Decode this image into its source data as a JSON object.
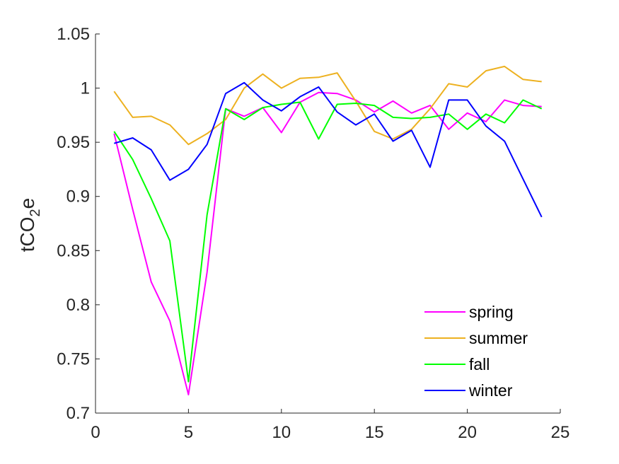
{
  "chart_data": {
    "type": "line",
    "title": "",
    "xlabel": "",
    "ylabel": "tCO",
    "ylabel_sub": "2",
    "ylabel_suffix": "e",
    "xlim": [
      0,
      25
    ],
    "ylim": [
      0.7,
      1.05
    ],
    "xticks": [
      0,
      5,
      10,
      15,
      20,
      25
    ],
    "xtick_labels": [
      "0",
      "5",
      "10",
      "15",
      "20",
      "25"
    ],
    "yticks": [
      0.7,
      0.75,
      0.8,
      0.85,
      0.9,
      0.95,
      1.0,
      1.05
    ],
    "ytick_labels": [
      "0.7",
      "0.75",
      "0.8",
      "0.85",
      "0.9",
      "0.95",
      "1",
      "1.05"
    ],
    "grid": false,
    "legend_position": "bottom-right",
    "x": [
      1,
      2,
      3,
      4,
      5,
      6,
      7,
      8,
      9,
      10,
      11,
      12,
      13,
      14,
      15,
      16,
      17,
      18,
      19,
      20,
      21,
      22,
      23,
      24
    ],
    "series": [
      {
        "name": "spring",
        "color": "#ff00ff",
        "values": [
          0.958,
          0.888,
          0.821,
          0.785,
          0.717,
          0.83,
          0.981,
          0.974,
          0.982,
          0.959,
          0.987,
          0.996,
          0.995,
          0.989,
          0.978,
          0.988,
          0.977,
          0.984,
          0.962,
          0.977,
          0.969,
          0.989,
          0.984,
          0.983
        ]
      },
      {
        "name": "summer",
        "color": "#edb120",
        "values": [
          0.997,
          0.973,
          0.974,
          0.966,
          0.948,
          0.958,
          0.971,
          1.0,
          1.013,
          1.0,
          1.009,
          1.01,
          1.014,
          0.988,
          0.96,
          0.953,
          0.962,
          0.981,
          1.004,
          1.001,
          1.016,
          1.02,
          1.008,
          1.006
        ]
      },
      {
        "name": "fall",
        "color": "#00ff00",
        "values": [
          0.96,
          0.934,
          0.898,
          0.859,
          0.729,
          0.883,
          0.981,
          0.971,
          0.982,
          0.985,
          0.987,
          0.953,
          0.985,
          0.986,
          0.984,
          0.973,
          0.972,
          0.973,
          0.976,
          0.962,
          0.976,
          0.968,
          0.989,
          0.981
        ]
      },
      {
        "name": "winter",
        "color": "#0000ff",
        "values": [
          0.949,
          0.954,
          0.943,
          0.915,
          0.925,
          0.948,
          0.995,
          1.005,
          0.989,
          0.979,
          0.992,
          1.001,
          0.978,
          0.966,
          0.976,
          0.951,
          0.961,
          0.927,
          0.989,
          0.989,
          0.965,
          0.951,
          0.916,
          0.881
        ]
      }
    ]
  }
}
